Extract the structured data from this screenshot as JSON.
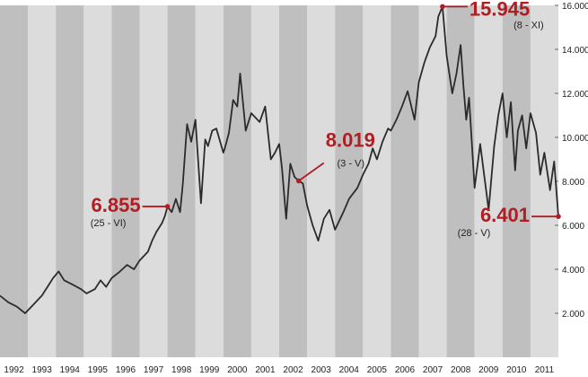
{
  "chart_data": {
    "type": "line",
    "title": "",
    "xlabel": "",
    "ylabel": "",
    "xlim": [
      1992.0,
      2012.0
    ],
    "ylim": [
      0,
      16000
    ],
    "x_ticks": [
      "1992",
      "1993",
      "1994",
      "1995",
      "1996",
      "1997",
      "1998",
      "1999",
      "2000",
      "2001",
      "2002",
      "2003",
      "2004",
      "2005",
      "2006",
      "2007",
      "2008",
      "2009",
      "2010",
      "2011"
    ],
    "y_ticks": [
      "2.000",
      "4.000",
      "6.000",
      "8.000",
      "10.000",
      "12.000",
      "14.000",
      "16.000"
    ],
    "y_tick_values": [
      2000,
      4000,
      6000,
      8000,
      10000,
      12000,
      14000,
      16000
    ],
    "grid": "alternating year bands",
    "line_color": "#2b2b2b",
    "accent_color": "#b01e23",
    "band_dark": "#bfbfbf",
    "band_light": "#dcdcdc",
    "series": [
      {
        "x": [
          1992.0,
          1992.3,
          1992.6,
          1992.9,
          1993.2,
          1993.5,
          1993.7,
          1993.9,
          1994.1,
          1994.3,
          1994.6,
          1994.9,
          1995.1,
          1995.4,
          1995.6,
          1995.8,
          1996.0,
          1996.3,
          1996.55,
          1996.8,
          1997.0,
          1997.3,
          1997.45,
          1997.6,
          1997.8,
          1997.9,
          1998.0,
          1998.15,
          1998.3,
          1998.45,
          1998.55,
          1998.7,
          1998.85,
          1999.0,
          1999.2,
          1999.35,
          1999.45,
          1999.6,
          1999.75,
          2000.0,
          2000.05,
          2000.2,
          2000.35,
          2000.5,
          2000.6,
          2000.8,
          2001.0,
          2001.3,
          2001.5,
          2001.7,
          2001.85,
          2002.0,
          2002.1,
          2002.25,
          2002.4,
          2002.55,
          2002.7,
          2002.85,
          2003.0,
          2003.2,
          2003.4,
          2003.6,
          2003.8,
          2004.0,
          2004.3,
          2004.5,
          2004.8,
          2005.0,
          2005.2,
          2005.35,
          2005.5,
          2005.7,
          2005.9,
          2006.0,
          2006.2,
          2006.4,
          2006.6,
          2006.85,
          2007.0,
          2007.2,
          2007.4,
          2007.6,
          2007.7,
          2007.85,
          2008.0,
          2008.2,
          2008.35,
          2008.5,
          2008.6,
          2008.7,
          2008.8,
          2009.0,
          2009.2,
          2009.5,
          2009.7,
          2009.85,
          2010.0,
          2010.15,
          2010.3,
          2010.45,
          2010.55,
          2010.7,
          2010.85,
          2011.0,
          2011.2,
          2011.35,
          2011.5,
          2011.7,
          2011.85,
          2012.0
        ],
        "y": [
          2800,
          2500,
          2300,
          2000,
          2400,
          2800,
          3200,
          3600,
          3900,
          3500,
          3300,
          3100,
          2900,
          3100,
          3500,
          3200,
          3600,
          3900,
          4200,
          4000,
          4400,
          4800,
          5300,
          5700,
          6100,
          6400,
          6855,
          6600,
          7200,
          6600,
          7900,
          10600,
          9800,
          10800,
          7000,
          9900,
          9600,
          10300,
          10400,
          9300,
          9500,
          10200,
          11700,
          11400,
          12900,
          10300,
          11100,
          10700,
          11400,
          9000,
          9300,
          9700,
          8600,
          6300,
          8800,
          8200,
          8019,
          7900,
          6900,
          6000,
          5300,
          6300,
          6700,
          5800,
          6600,
          7200,
          7700,
          8300,
          8800,
          9500,
          9000,
          9800,
          10400,
          10300,
          10800,
          11400,
          12100,
          10800,
          12500,
          13400,
          14100,
          14600,
          15500,
          15945,
          13700,
          12000,
          12900,
          14200,
          12300,
          10800,
          11800,
          7700,
          9700,
          6700,
          9600,
          11000,
          12000,
          10000,
          11600,
          8500,
          10300,
          11000,
          9500,
          11100,
          10200,
          8300,
          9300,
          7600,
          8900,
          6401
        ]
      }
    ],
    "annotations": [
      {
        "value": "6.855",
        "date": "(25 - VI)",
        "x": 1998.0,
        "y": 6855
      },
      {
        "value": "8.019",
        "date": "(3 - V)",
        "x": 2002.7,
        "y": 8019
      },
      {
        "value": "15.945",
        "date": "(8 - XI)",
        "x": 2007.85,
        "y": 15945
      },
      {
        "value": "6.401",
        "date": "(28 - V)",
        "x": 2012.0,
        "y": 6401
      }
    ]
  }
}
